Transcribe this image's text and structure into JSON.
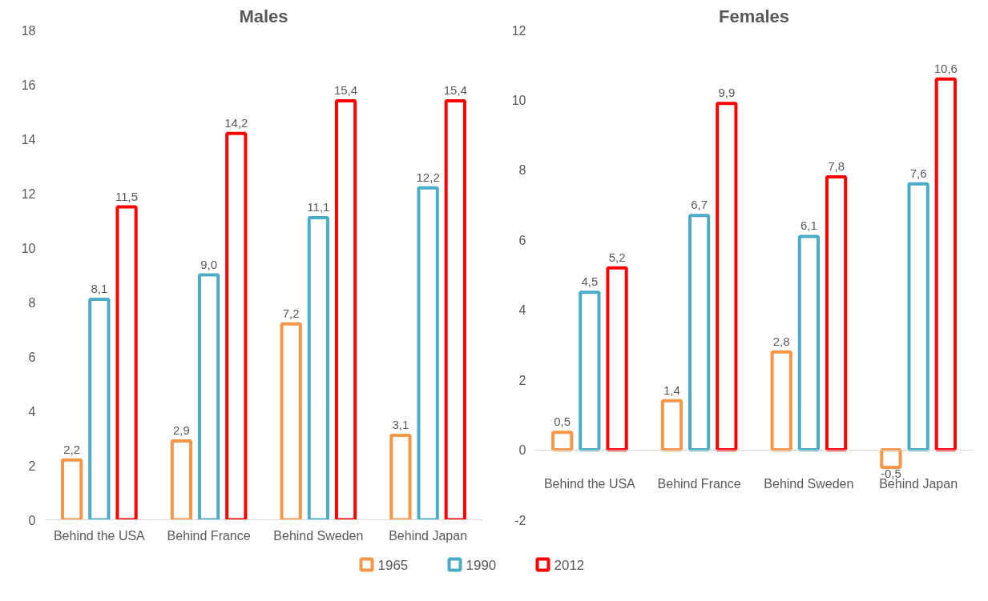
{
  "chart_data": [
    {
      "type": "bar",
      "title": "Males",
      "categories": [
        "Behind the USA",
        "Behind France",
        "Behind Sweden",
        "Behind Japan"
      ],
      "series": [
        {
          "name": "1965",
          "color": "#f79646",
          "values": [
            2.2,
            2.9,
            7.2,
            3.1
          ],
          "value_labels": [
            "2,2",
            "2,9",
            "7,2",
            "3,1"
          ]
        },
        {
          "name": "1990",
          "color": "#4bacc6",
          "values": [
            8.1,
            9.0,
            11.1,
            12.2
          ],
          "value_labels": [
            "8,1",
            "9,0",
            "11,1",
            "12,2"
          ]
        },
        {
          "name": "2012",
          "color": "#ff0000",
          "values": [
            11.5,
            14.2,
            15.4,
            15.4
          ],
          "value_labels": [
            "11,5",
            "14,2",
            "15,4",
            "15,4"
          ]
        }
      ],
      "ylim": [
        0,
        18
      ],
      "yticks": [
        0,
        2,
        4,
        6,
        8,
        10,
        12,
        14,
        16,
        18
      ],
      "grid": false,
      "legend": "bottom"
    },
    {
      "type": "bar",
      "title": "Females",
      "categories": [
        "Behind the USA",
        "Behind France",
        "Behind Sweden",
        "Behind Japan"
      ],
      "series": [
        {
          "name": "1965",
          "color": "#f79646",
          "values": [
            0.5,
            1.4,
            2.8,
            -0.5
          ],
          "value_labels": [
            "0,5",
            "1,4",
            "2,8",
            "-0,5"
          ]
        },
        {
          "name": "1990",
          "color": "#4bacc6",
          "values": [
            4.5,
            6.7,
            6.1,
            7.6
          ],
          "value_labels": [
            "4,5",
            "6,7",
            "6,1",
            "7,6"
          ]
        },
        {
          "name": "2012",
          "color": "#ff0000",
          "values": [
            5.2,
            9.9,
            7.8,
            10.6
          ],
          "value_labels": [
            "5,2",
            "9,9",
            "7,8",
            "10,6"
          ]
        }
      ],
      "ylim": [
        -2,
        12
      ],
      "yticks": [
        -2,
        0,
        2,
        4,
        6,
        8,
        10,
        12
      ],
      "grid": false
    }
  ]
}
